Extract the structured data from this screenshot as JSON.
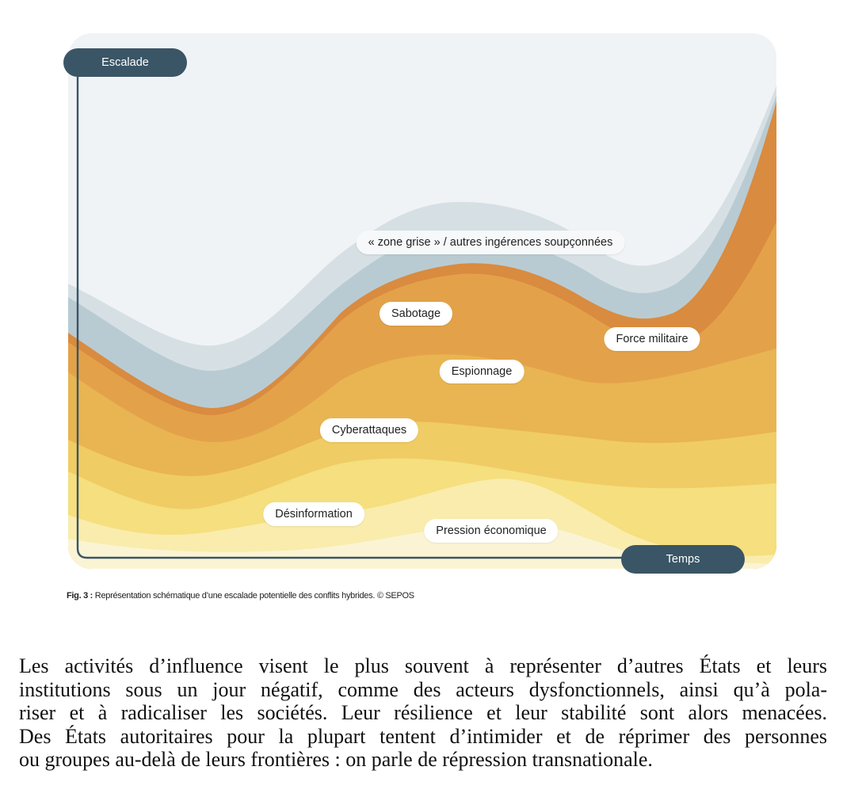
{
  "figure": {
    "axis_y_label": "Escalade",
    "axis_x_label": "Temps",
    "layers": [
      {
        "name": "zone_grise",
        "label": "« zone grise » / autres ingérences soupçonnées",
        "color": "#c6d4da"
      },
      {
        "name": "force_militaire",
        "label": "Force militaire",
        "color": "#d98b3f"
      },
      {
        "name": "sabotage",
        "label": "Sabotage",
        "color": "#e3a24a"
      },
      {
        "name": "espionnage",
        "label": "Espionnage",
        "color": "#e8b552"
      },
      {
        "name": "cyberattaques",
        "label": "Cyberattaques",
        "color": "#f0cc64"
      },
      {
        "name": "desinformation",
        "label": "Désinformation",
        "color": "#f5df7e"
      },
      {
        "name": "pression_economique",
        "label": "Pression économique",
        "color": "#f9ecad"
      }
    ],
    "background_color": "#f0f3f5",
    "axis_color": "#3a5566"
  },
  "caption": {
    "prefix": "Fig. 3 :",
    "text": " Représentation schématique d’une escalade potentielle des conflits hybrides. © SEPOS"
  },
  "paragraph": {
    "lines": [
      "Les activités d’influence visent le plus souvent à représenter d’autres États et leurs",
      "institutions sous un jour négatif, comme des acteurs dysfonctionnels, ainsi qu’à pola-",
      "riser et à radicaliser les sociétés. Leur résilience et leur stabilité sont alors menacées.",
      "Des États autoritaires pour la plupart tentent d’intimider et de réprimer des personnes",
      "ou groupes au-delà de leurs frontières : on parle de répression transnationale."
    ]
  }
}
